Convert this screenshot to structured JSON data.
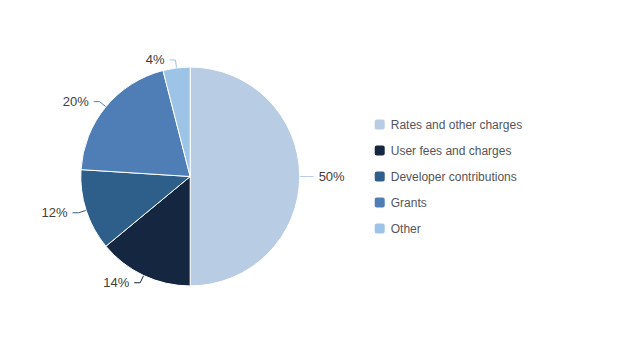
{
  "chart_data": {
    "type": "pie",
    "categories": [
      "Rates and other charges",
      "User fees and charges",
      "Developer contributions",
      "Grants",
      "Other"
    ],
    "values": [
      50,
      14,
      12,
      20,
      4
    ],
    "value_labels": [
      "50%",
      "14%",
      "12%",
      "20%",
      "4%"
    ],
    "colors": [
      "#b8cce4",
      "#152640",
      "#2e5f8a",
      "#4e7eb5",
      "#9dc3e6"
    ],
    "data_labels": true,
    "legend": "right"
  }
}
